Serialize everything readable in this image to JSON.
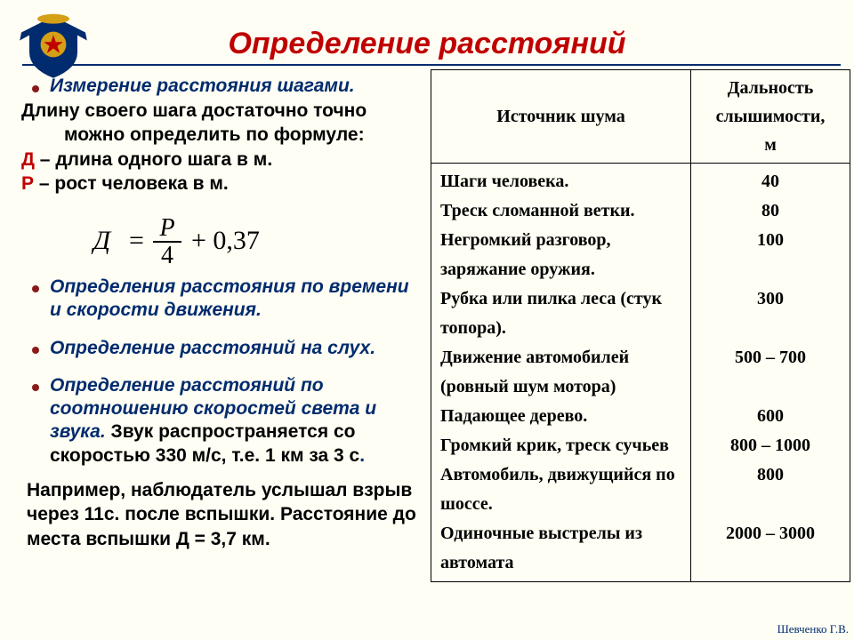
{
  "title": "Определение расстояний",
  "emblem": {
    "ribbon_color": "#002b6e",
    "accent_color": "#d4a017",
    "star_color": "#c00000"
  },
  "left": {
    "b1_heading": "Измерение расстояния шагами.",
    "intro1": "Длину своего шага достаточно точно",
    "intro2": "можно определить по формуле:",
    "d_letter": "Д",
    "d_rest": " – длина одного шага в м.",
    "p_letter": "Р",
    "p_rest": " – рост человека в м.",
    "formula_lhs": "Д",
    "formula_eq": "=",
    "formula_num": "P",
    "formula_den": "4",
    "formula_plus": "+ 0,37",
    "b2": "Определения расстояния по времени и скорости движения.",
    "b3": "Определение расстояний на слух.",
    "b4_blue": "Определение расстояний по соотношению скоростей света и звука.",
    "b4_black": " Звук распространяется  со скоростью 330 м/с, т.е. 1 км за 3 с",
    "example": "Например, наблюдатель услышал взрыв через 11с. после вспышки. Расстояние до места вспышки Д = 3,7 км."
  },
  "table": {
    "h1": "Источник шума",
    "h2_l1": "Дальность",
    "h2_l2": "слышимости,",
    "h2_l3": "м",
    "rows": [
      {
        "src": "Шаги человека.",
        "dist": "40"
      },
      {
        "src": "Треск сломанной ветки.",
        "dist": "80"
      },
      {
        "src": "Негромкий разговор, заряжание оружия.",
        "dist": "100"
      },
      {
        "src": "Рубка или пилка леса (стук топора).",
        "dist": "300"
      },
      {
        "src": "Движение автомобилей (ровный шум мотора)",
        "dist": "500 – 700"
      },
      {
        "src": "Падающее дерево.",
        "dist": "600"
      },
      {
        "src": "Громкий крик, треск сучьев",
        "dist": "800 – 1000"
      },
      {
        "src": "Автомобиль, движущийся по шоссе.",
        "dist": "800"
      },
      {
        "src": "Одиночные выстрелы из автомата",
        "dist": "2000 – 3000"
      }
    ]
  },
  "credit": "Шевченко Г.В."
}
